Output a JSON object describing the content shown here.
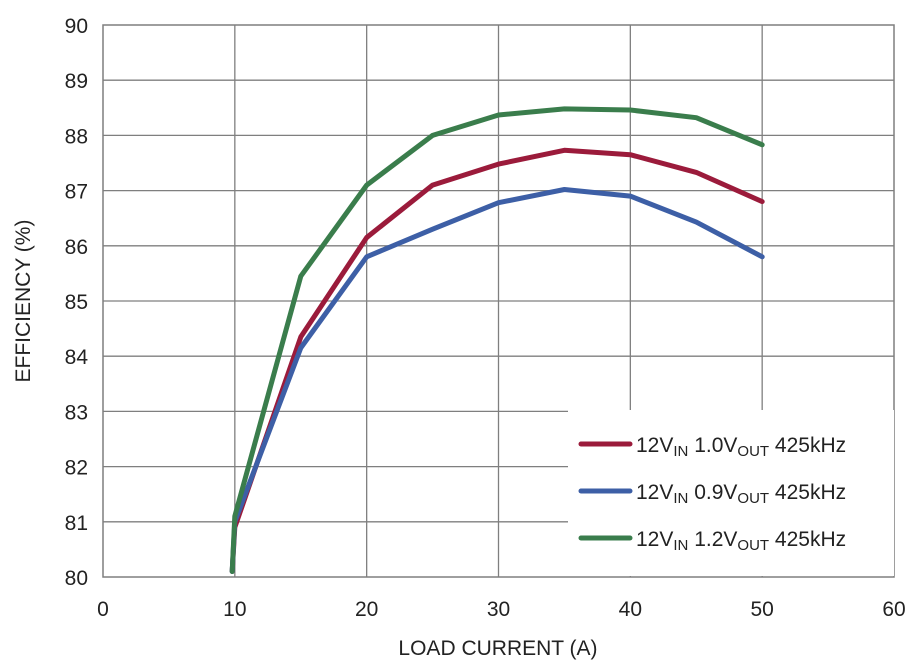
{
  "chart_data": {
    "type": "line",
    "xlabel": "LOAD CURRENT (A)",
    "ylabel": "EFFICIENCY (%)",
    "xlim": [
      0,
      60
    ],
    "ylim": [
      80,
      90
    ],
    "xticks": [
      0,
      10,
      20,
      30,
      40,
      50,
      60
    ],
    "yticks": [
      80,
      81,
      82,
      83,
      84,
      85,
      86,
      87,
      88,
      89,
      90
    ],
    "grid": true,
    "legend_position": "bottom-right",
    "series": [
      {
        "name": "12VIN 1.0VOUT 425kHz",
        "legend_parts": [
          "12V",
          "IN",
          " 1.0V",
          "OUT",
          " 425kHz"
        ],
        "color": "#9b1b3b",
        "x": [
          9.8,
          10,
          15,
          20,
          25,
          30,
          35,
          40,
          45,
          50
        ],
        "y": [
          80.1,
          80.9,
          84.35,
          86.15,
          87.1,
          87.48,
          87.73,
          87.65,
          87.33,
          86.8
        ]
      },
      {
        "name": "12VIN 0.9VOUT 425kHz",
        "legend_parts": [
          "12V",
          "IN",
          " 0.9V",
          "OUT",
          " 425kHz"
        ],
        "color": "#3d5fa6",
        "x": [
          9.8,
          10,
          15,
          20,
          25,
          30,
          35,
          40,
          45,
          50
        ],
        "y": [
          80.1,
          81.0,
          84.15,
          85.8,
          86.3,
          86.78,
          87.02,
          86.9,
          86.43,
          85.8
        ]
      },
      {
        "name": "12VIN 1.2VOUT 425kHz",
        "legend_parts": [
          "12V",
          "IN",
          " 1.2V",
          "OUT",
          " 425kHz"
        ],
        "color": "#3a7d4c",
        "x": [
          9.8,
          10,
          15,
          20,
          25,
          30,
          35,
          40,
          45,
          50
        ],
        "y": [
          80.1,
          81.1,
          85.45,
          87.1,
          88.0,
          88.37,
          88.48,
          88.46,
          88.32,
          87.83
        ]
      }
    ]
  }
}
